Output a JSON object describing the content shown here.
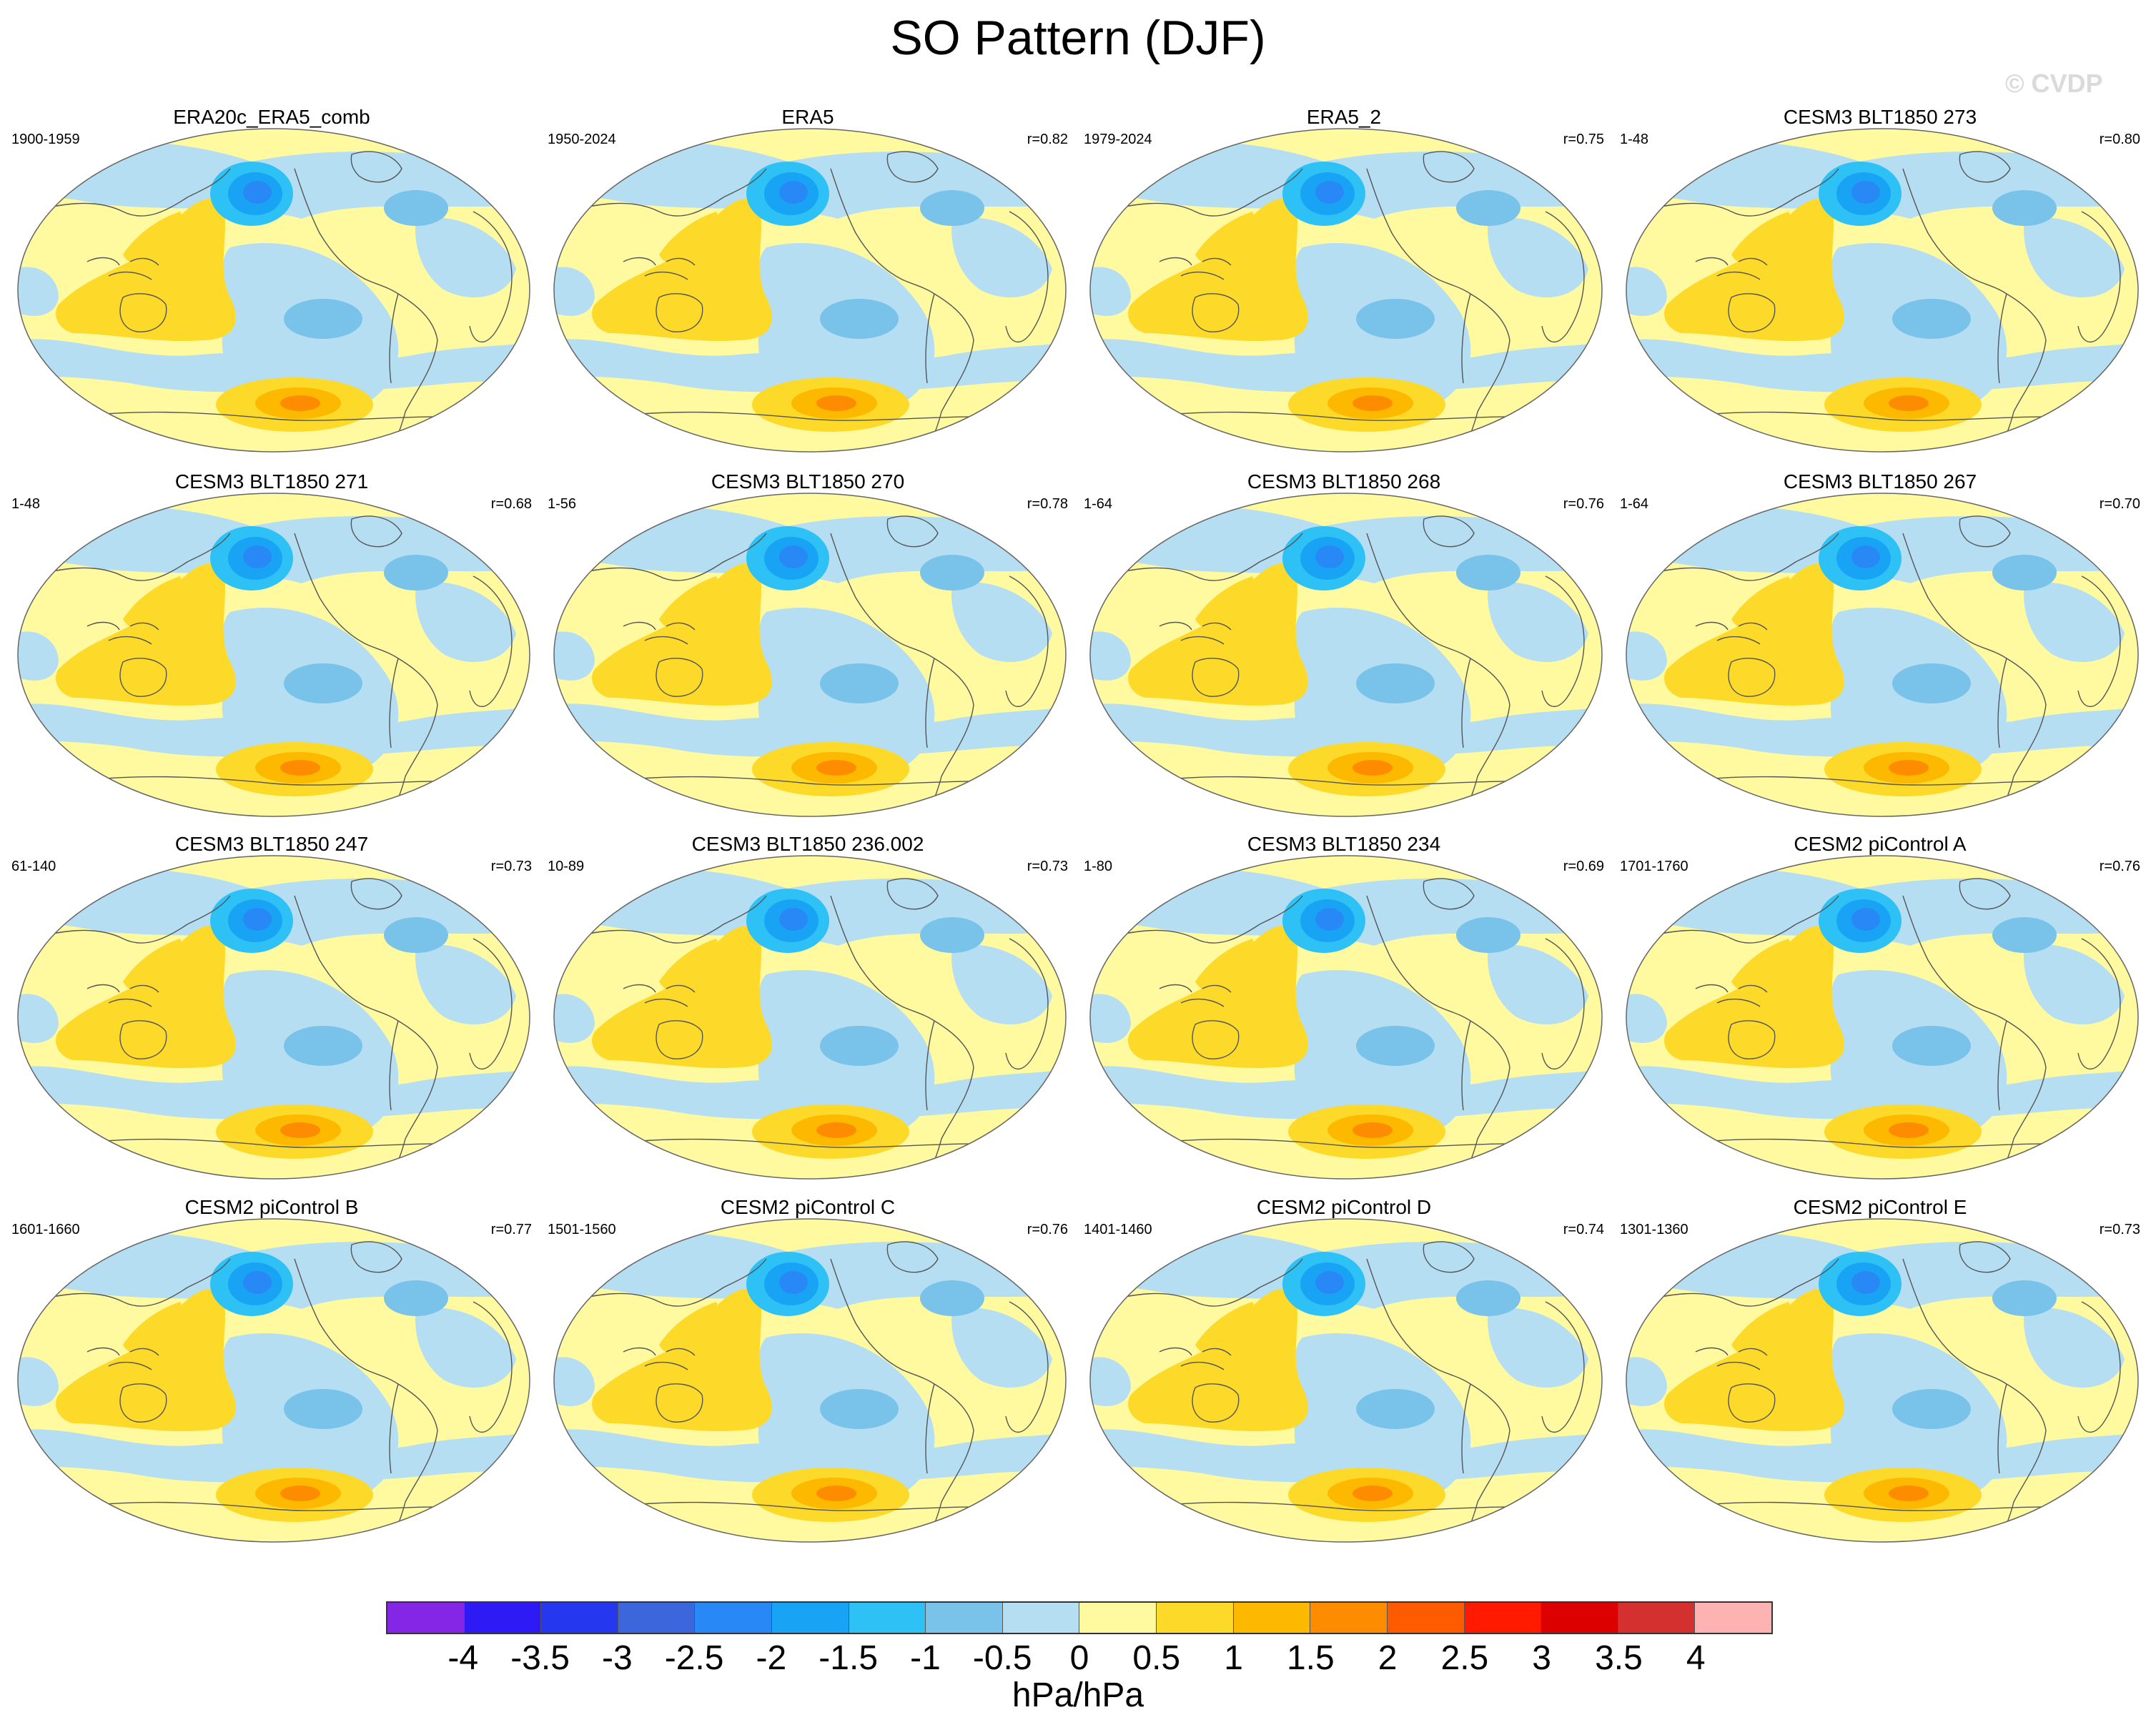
{
  "title": "SO Pattern (DJF)",
  "watermark": "© CVDP",
  "units": "hPa/hPa",
  "colorbar": {
    "labels": [
      "-4",
      "-3.5",
      "-3",
      "-2.5",
      "-2",
      "-1.5",
      "-1",
      "-0.5",
      "0",
      "0.5",
      "1",
      "1.5",
      "2",
      "2.5",
      "3",
      "3.5",
      "4"
    ],
    "colors": [
      "#8526e6",
      "#2e1af5",
      "#2538ef",
      "#3c66dc",
      "#2888f5",
      "#19a3f5",
      "#2ec1f5",
      "#79c2ea",
      "#b6def2",
      "#fffaa0",
      "#fdd92a",
      "#fdb800",
      "#fe8c00",
      "#fe5b00",
      "#ff1a00",
      "#dc0000",
      "#d53030",
      "#feb3b3"
    ]
  },
  "panels": [
    {
      "title": "ERA20c_ERA5_comb",
      "years": "1900-1959",
      "corr": ""
    },
    {
      "title": "ERA5",
      "years": "1950-2024",
      "corr": "r=0.82"
    },
    {
      "title": "ERA5_2",
      "years": "1979-2024",
      "corr": "r=0.75"
    },
    {
      "title": "CESM3 BLT1850 273",
      "years": "1-48",
      "corr": "r=0.80"
    },
    {
      "title": "CESM3 BLT1850 271",
      "years": "1-48",
      "corr": "r=0.68"
    },
    {
      "title": "CESM3 BLT1850 270",
      "years": "1-56",
      "corr": "r=0.78"
    },
    {
      "title": "CESM3 BLT1850 268",
      "years": "1-64",
      "corr": "r=0.76"
    },
    {
      "title": "CESM3 BLT1850 267",
      "years": "1-64",
      "corr": "r=0.70"
    },
    {
      "title": "CESM3 BLT1850 247",
      "years": "61-140",
      "corr": "r=0.73"
    },
    {
      "title": "CESM3 BLT1850 236.002",
      "years": "10-89",
      "corr": "r=0.73"
    },
    {
      "title": "CESM3 BLT1850 234",
      "years": "1-80",
      "corr": "r=0.69"
    },
    {
      "title": "CESM2 piControl A",
      "years": "1701-1760",
      "corr": "r=0.76"
    },
    {
      "title": "CESM2 piControl B",
      "years": "1601-1660",
      "corr": "r=0.77"
    },
    {
      "title": "CESM2 piControl C",
      "years": "1501-1560",
      "corr": "r=0.76"
    },
    {
      "title": "CESM2 piControl D",
      "years": "1401-1460",
      "corr": "r=0.74"
    },
    {
      "title": "CESM2 piControl E",
      "years": "1301-1360",
      "corr": "r=0.73"
    }
  ]
}
